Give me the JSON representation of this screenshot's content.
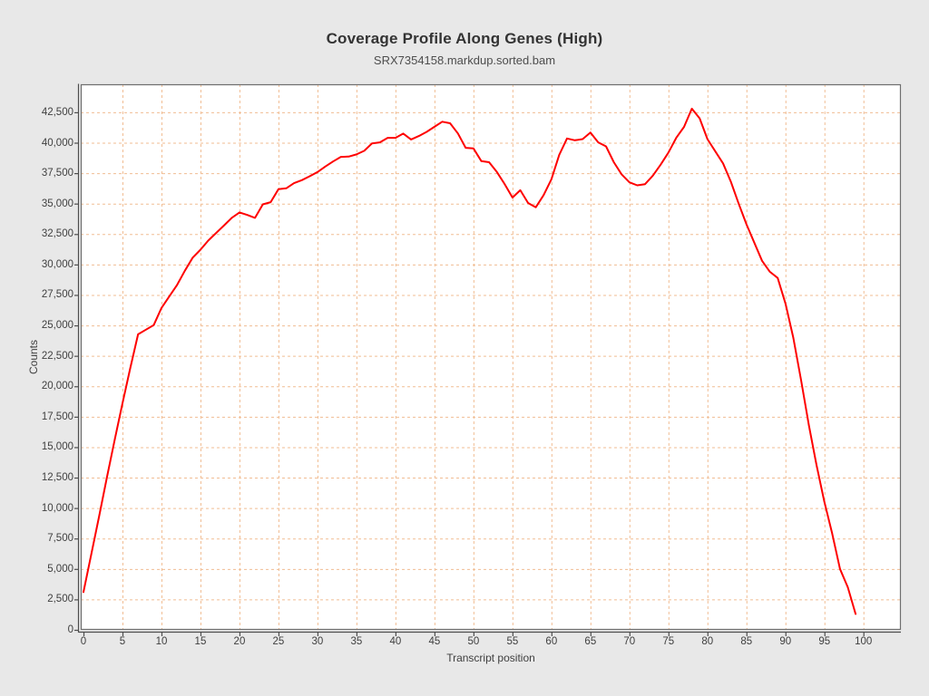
{
  "header": {
    "title": "Coverage Profile Along Genes (High)",
    "subtitle": "SRX7354158.markdup.sorted.bam"
  },
  "chart_data": {
    "type": "line",
    "title": "Coverage Profile Along Genes (High)",
    "subtitle": "SRX7354158.markdup.sorted.bam",
    "xlabel": "Transcript position",
    "ylabel": "Counts",
    "legend": "none",
    "grid": true,
    "x_ticks": [
      0,
      5,
      10,
      15,
      20,
      25,
      30,
      35,
      40,
      45,
      50,
      55,
      60,
      65,
      70,
      75,
      80,
      85,
      90,
      95,
      100
    ],
    "y_ticks": [
      0,
      2500,
      5000,
      7500,
      10000,
      12500,
      15000,
      17500,
      20000,
      22500,
      25000,
      27500,
      30000,
      32500,
      35000,
      37500,
      40000,
      42500
    ],
    "xlim": [
      -0.35,
      104.8
    ],
    "ylim": [
      0,
      44800
    ],
    "x": [
      0,
      1,
      2,
      3,
      4,
      5,
      6,
      7,
      8,
      9,
      10,
      11,
      12,
      13,
      14,
      15,
      16,
      17,
      18,
      19,
      20,
      21,
      22,
      23,
      24,
      25,
      26,
      27,
      28,
      29,
      30,
      31,
      32,
      33,
      34,
      35,
      36,
      37,
      38,
      39,
      40,
      41,
      42,
      43,
      44,
      45,
      46,
      47,
      48,
      49,
      50,
      51,
      52,
      53,
      54,
      55,
      56,
      57,
      58,
      59,
      60,
      61,
      62,
      63,
      64,
      65,
      66,
      67,
      68,
      69,
      70,
      71,
      72,
      73,
      74,
      75,
      76,
      77,
      78,
      79,
      80,
      81,
      82,
      83,
      84,
      85,
      86,
      87,
      88,
      89,
      90,
      91,
      92,
      93,
      94,
      95,
      96,
      97,
      98,
      99
    ],
    "series": [
      {
        "name": "coverage",
        "color": "#fe0000",
        "values": [
          3100,
          6200,
          9300,
          12500,
          15600,
          18600,
          21500,
          24270,
          24650,
          25020,
          26430,
          27380,
          28320,
          29490,
          30560,
          31220,
          31970,
          32590,
          33200,
          33830,
          34280,
          34070,
          33830,
          34940,
          35120,
          36180,
          36260,
          36680,
          36930,
          37250,
          37590,
          38040,
          38460,
          38840,
          38860,
          39040,
          39340,
          39950,
          40030,
          40400,
          40400,
          40750,
          40270,
          40550,
          40890,
          41310,
          41730,
          41600,
          40770,
          39580,
          39530,
          38500,
          38400,
          37600,
          36600,
          35500,
          36100,
          35050,
          34700,
          35700,
          37000,
          39000,
          40350,
          40200,
          40300,
          40840,
          40030,
          39700,
          38400,
          37400,
          36750,
          36500,
          36600,
          37300,
          38200,
          39200,
          40400,
          41300,
          42800,
          42000,
          40300,
          39300,
          38300,
          36800,
          35000,
          33300,
          31800,
          30300,
          29400,
          28900,
          26800,
          24000,
          20500,
          16800,
          13500,
          10500,
          7900,
          5000,
          3500,
          1300
        ]
      }
    ],
    "colors": {
      "page_background": "#e8e8e8",
      "plot_background": "#ffffff",
      "grid_color": "#f1bd93",
      "frame_color": "#6e6e6e",
      "axis_color": "#4d4d4d",
      "line_color": "#fe0000",
      "title_color": "#333333",
      "tick_label_color": "#3f3f3f"
    }
  }
}
